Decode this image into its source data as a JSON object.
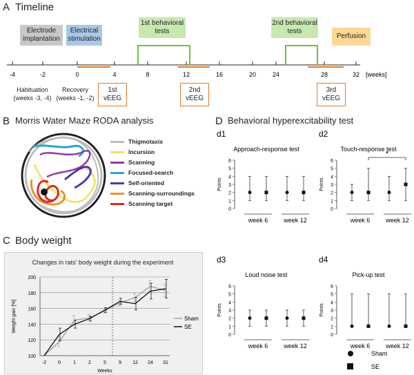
{
  "panelA": {
    "label": "A",
    "title": "Timeline",
    "boxes": {
      "electrode": "Electrode implantation",
      "stimulation": "Electrical stimulation",
      "behav1": "1st behavioral tests",
      "behav2": "2nd behavioral tests",
      "perfusion": "Perfusion"
    },
    "ticks": [
      "-4",
      "-2",
      "0",
      "4",
      "8",
      "12",
      "16",
      "20",
      "24",
      "28",
      "32"
    ],
    "unit": "[weeks]",
    "habituation": "Habituation (weeks -3, -4)",
    "recovery": "Recovery (weeks -1, -2)",
    "veeg": [
      "1st vEEG",
      "2nd vEEG",
      "3rd vEEG"
    ],
    "colors": {
      "gray": "#c8c8c8",
      "blue": "#a9c8e8",
      "green": "#c9e8b0",
      "greenLine": "#6fbf3f",
      "orange": "#fbd894",
      "orangeLine": "#e07b2a"
    }
  },
  "panelB": {
    "label": "B",
    "title": "Morris Water Maze RODA analysis",
    "legend": [
      {
        "name": "Thigmotaxis",
        "color": "#bdbdbd"
      },
      {
        "name": "Incursion",
        "color": "#f0e05a"
      },
      {
        "name": "Scanning",
        "color": "#8e3aa8"
      },
      {
        "name": "Focused-search",
        "color": "#2aa6c9"
      },
      {
        "name": "Self-oriented",
        "color": "#4a3aa8"
      },
      {
        "name": "Scanning-surroundings",
        "color": "#e8932e"
      },
      {
        "name": "Scanning target",
        "color": "#d62c22"
      }
    ]
  },
  "panelC": {
    "label": "C",
    "title": "Body weight",
    "chart_data": {
      "type": "line",
      "title": "Changes in rats' body weight during the experiment",
      "xlabel": "Weeks",
      "ylabel": "Weight gain [%]",
      "categories": [
        "-2",
        "0",
        "1",
        "2",
        "5",
        "9",
        "12",
        "24",
        "31"
      ],
      "ylim": [
        100,
        200
      ],
      "yticks": [
        "100",
        "120",
        "140",
        "160",
        "180",
        "200"
      ],
      "series": [
        {
          "name": "Sham",
          "color": "#a0a0a0",
          "values": [
            100,
            118,
            145,
            148,
            157,
            167,
            174,
            188,
            183
          ],
          "err": [
            0,
            6,
            6,
            4,
            3,
            4,
            5,
            7,
            8
          ]
        },
        {
          "name": "SE",
          "color": "#000000",
          "values": [
            100,
            127,
            140,
            147,
            158,
            169,
            166,
            182,
            185
          ],
          "err": [
            0,
            8,
            5,
            3,
            3,
            4,
            8,
            10,
            12
          ]
        }
      ]
    }
  },
  "panelD": {
    "label": "D",
    "title": "Behavioral hyperexcitability test",
    "subpanels": [
      {
        "id": "d1",
        "title": "Approach-response test",
        "star": ""
      },
      {
        "id": "d2",
        "title": "Touch-response test",
        "star": "*"
      },
      {
        "id": "d3",
        "title": "Loud noise test",
        "star": ""
      },
      {
        "id": "d4",
        "title": "Pick-up test",
        "star": ""
      }
    ],
    "ylabel": "Points",
    "yticks": [
      "0",
      "1",
      "2",
      "3",
      "4",
      "5",
      "6"
    ],
    "groups": [
      "week 6",
      "week 12"
    ],
    "legend": {
      "sham": "Sham",
      "se": "SE"
    },
    "chart_data": [
      {
        "title": "Approach-response test",
        "type": "scatter",
        "series": [
          {
            "name": "Sham",
            "values": [
              2,
              2
            ],
            "low": [
              1,
              1
            ],
            "high": [
              4,
              4
            ]
          },
          {
            "name": "SE",
            "values": [
              2,
              2
            ],
            "low": [
              1,
              1
            ],
            "high": [
              4,
              4
            ]
          }
        ]
      },
      {
        "title": "Touch-response test",
        "type": "scatter",
        "series": [
          {
            "name": "Sham",
            "values": [
              2,
              2
            ],
            "low": [
              1,
              1
            ],
            "high": [
              3,
              4
            ]
          },
          {
            "name": "SE",
            "values": [
              2,
              3
            ],
            "low": [
              1,
              1
            ],
            "high": [
              5,
              5
            ]
          }
        ]
      },
      {
        "title": "Loud noise test",
        "type": "scatter",
        "series": [
          {
            "name": "Sham",
            "values": [
              2,
              2
            ],
            "low": [
              1,
              1
            ],
            "high": [
              3,
              3
            ]
          },
          {
            "name": "SE",
            "values": [
              2,
              2
            ],
            "low": [
              1,
              1
            ],
            "high": [
              3,
              3
            ]
          }
        ]
      },
      {
        "title": "Pick-up test",
        "type": "scatter",
        "series": [
          {
            "name": "Sham",
            "values": [
              1,
              1
            ],
            "low": [
              1,
              1
            ],
            "high": [
              5,
              5
            ]
          },
          {
            "name": "SE",
            "values": [
              1,
              1
            ],
            "low": [
              1,
              1
            ],
            "high": [
              5,
              5
            ]
          }
        ]
      }
    ]
  }
}
